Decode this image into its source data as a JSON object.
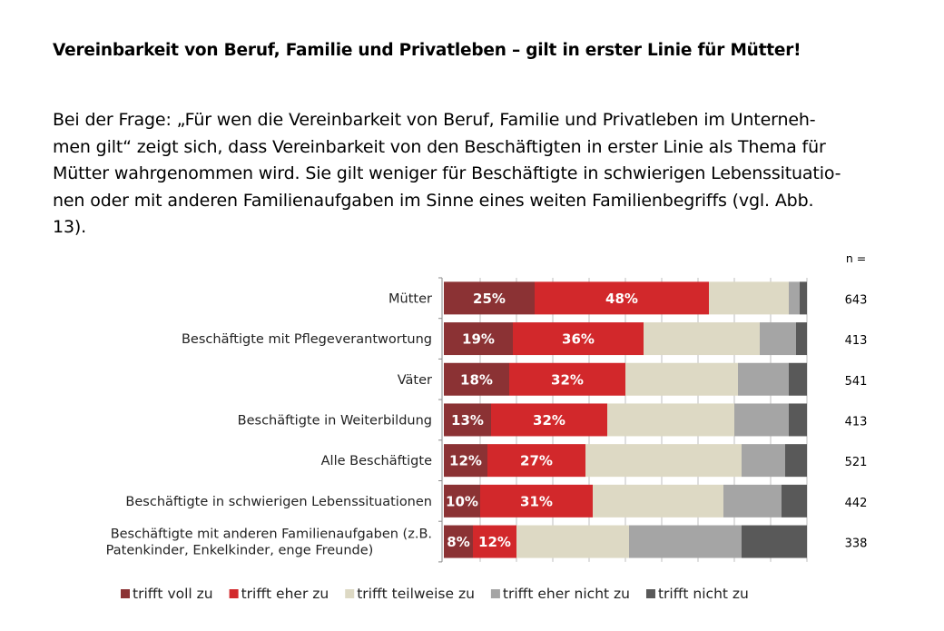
{
  "document": {
    "title": "Vereinbarkeit von Beruf, Familie und Privatleben – gilt in erster Linie für Mütter!",
    "paragraph_lines": [
      "Bei der Frage: „Für wen die Vereinbarkeit von Beruf, Familie und Privatleben im Unterneh-",
      "men gilt“ zeigt sich, dass Vereinbarkeit von den Beschäftigten in erster Linie als Thema für",
      "Mütter wahrgenommen wird. Sie gilt weniger für Beschäftigte in schwierigen Lebenssituatio-",
      "nen oder mit anderen Familienaufgaben im Sinne eines weiten Familienbegriffs (vgl. Abb.",
      "13)."
    ]
  },
  "chart_data": {
    "type": "bar",
    "orientation": "horizontal-stacked-100",
    "n_header": "n =",
    "categories": [
      [
        "Mütter"
      ],
      [
        "Beschäftigte mit Pflegeverantwortung"
      ],
      [
        "Väter"
      ],
      [
        "Beschäftigte in Weiterbildung"
      ],
      [
        "Alle Beschäftigte"
      ],
      [
        "Beschäftigte in schwierigen Lebenssituationen"
      ],
      [
        "Beschäftigte mit anderen Familienaufgaben (z.B.",
        "Patenkinder, Enkelkinder, enge Freunde)"
      ]
    ],
    "n": [
      "643",
      "413",
      "541",
      "413",
      "521",
      "442",
      "338"
    ],
    "xlim": [
      0,
      100
    ],
    "legend_position": "bottom",
    "series": [
      {
        "name": "trifft voll zu",
        "color": "#8b3234",
        "values": [
          25,
          19,
          18,
          13,
          12,
          10,
          8
        ],
        "labeled": true
      },
      {
        "name": "trifft eher zu",
        "color": "#d2282b",
        "values": [
          48,
          36,
          32,
          32,
          27,
          31,
          12
        ],
        "labeled": true
      },
      {
        "name": "trifft teilweise zu",
        "color": "#ddd9c4",
        "values": [
          22,
          32,
          31,
          35,
          43,
          36,
          31
        ],
        "labeled": false
      },
      {
        "name": "trifft eher nicht zu",
        "color": "#a5a5a5",
        "values": [
          3,
          10,
          14,
          15,
          12,
          16,
          31
        ],
        "labeled": false
      },
      {
        "name": "trifft nicht zu",
        "color": "#595959",
        "values": [
          2,
          3,
          5,
          5,
          6,
          7,
          18
        ],
        "labeled": false
      }
    ]
  }
}
